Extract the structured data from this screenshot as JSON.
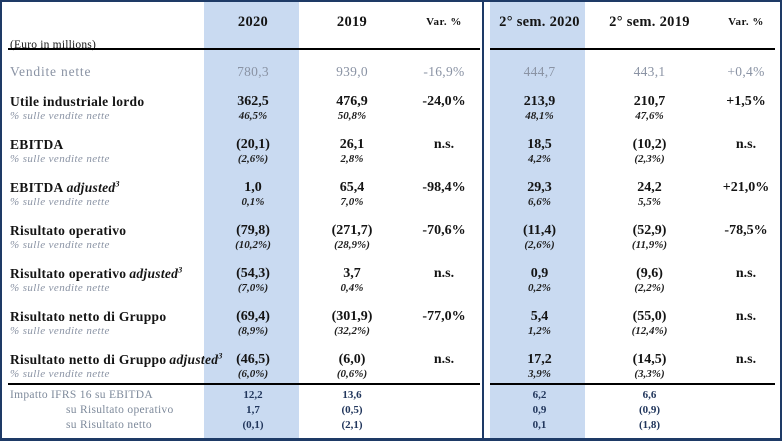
{
  "header": {
    "unit_label": "(Euro in millions)",
    "cols": [
      "2020",
      "2019",
      "Var. %",
      "2° sem. 2020",
      "2° sem. 2019",
      "Var. %"
    ]
  },
  "rows": [
    {
      "label": "Vendite nette",
      "v": [
        "780,3",
        "939,0",
        "-16,9%",
        "444,7",
        "443,1",
        "+0,4%"
      ]
    },
    {
      "label": "Utile industriale lordo",
      "sublabel": "% sulle vendite nette",
      "v": [
        "362,5",
        "476,9",
        "-24,0%",
        "213,9",
        "210,7",
        "+1,5%"
      ],
      "s": [
        "46,5%",
        "50,8%",
        "",
        "48,1%",
        "47,6%",
        ""
      ]
    },
    {
      "label": "EBITDA",
      "sublabel": "% sulle vendite nette",
      "v": [
        "(20,1)",
        "26,1",
        "n.s.",
        "18,5",
        "(10,2)",
        "n.s."
      ],
      "s": [
        "(2,6%)",
        "2,8%",
        "",
        "4,2%",
        "(2,3%)",
        ""
      ]
    },
    {
      "label": "EBITDA",
      "label_em": "adjusted",
      "label_sup": "3",
      "sublabel": "% sulle vendite nette",
      "v": [
        "1,0",
        "65,4",
        "-98,4%",
        "29,3",
        "24,2",
        "+21,0%"
      ],
      "s": [
        "0,1%",
        "7,0%",
        "",
        "6,6%",
        "5,5%",
        ""
      ]
    },
    {
      "label": "Risultato operativo",
      "sublabel": "% sulle vendite nette",
      "v": [
        "(79,8)",
        "(271,7)",
        "-70,6%",
        "(11,4)",
        "(52,9)",
        "-78,5%"
      ],
      "s": [
        "(10,2%)",
        "(28,9%)",
        "",
        "(2,6%)",
        "(11,9%)",
        ""
      ]
    },
    {
      "label": "Risultato operativo",
      "label_em": "adjusted",
      "label_sup": "3",
      "sublabel": "% sulle vendite nette",
      "v": [
        "(54,3)",
        "3,7",
        "n.s.",
        "0,9",
        "(9,6)",
        "n.s."
      ],
      "s": [
        "(7,0%)",
        "0,4%",
        "",
        "0,2%",
        "(2,2%)",
        ""
      ]
    },
    {
      "label": "Risultato netto di Gruppo",
      "sublabel": "% sulle vendite nette",
      "v": [
        "(69,4)",
        "(301,9)",
        "-77,0%",
        "5,4",
        "(55,0)",
        "n.s."
      ],
      "s": [
        "(8,9%)",
        "(32,2%)",
        "",
        "1,2%",
        "(12,4%)",
        ""
      ]
    },
    {
      "label": "Risultato netto di Gruppo",
      "label_em": "adjusted",
      "label_sup": "3",
      "sublabel": "% sulle vendite nette",
      "v": [
        "(46,5)",
        "(6,0)",
        "n.s.",
        "17,2",
        "(14,5)",
        "n.s."
      ],
      "s": [
        "(6,0%)",
        "(0,6%)",
        "",
        "3,9%",
        "(3,3%)",
        ""
      ]
    }
  ],
  "ifrs": {
    "rows": [
      {
        "label": "Impatto IFRS 16 su EBITDA",
        "v": [
          "12,2",
          "13,6",
          "",
          "6,2",
          "6,6",
          ""
        ]
      },
      {
        "label": "su Risultato operativo",
        "v": [
          "1,7",
          "(0,5)",
          "",
          "0,9",
          "(0,9)",
          ""
        ]
      },
      {
        "label": "su Risultato netto",
        "v": [
          "(0,1)",
          "(2,1)",
          "",
          "0,1",
          "(1,8)",
          ""
        ]
      }
    ]
  },
  "colors": {
    "highlight_band": "#c9daf1",
    "outer_border": "#1e3a66",
    "header_rule": "#000000",
    "muted_text": "#8a93a4",
    "main_text": "#141414",
    "ifrs_label": "#7e8a9b",
    "ifrs_value": "#21365c"
  }
}
